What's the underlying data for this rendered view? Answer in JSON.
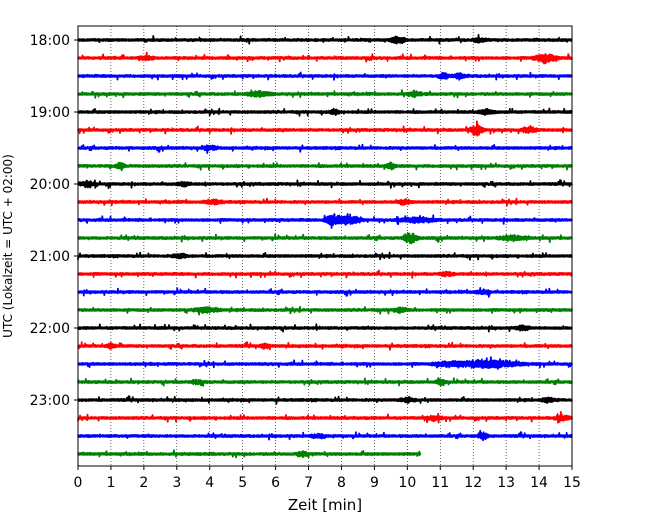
{
  "chart_data": {
    "type": "line",
    "subtype": "helicorder",
    "xlabel": "Zeit  [min]",
    "ylabel": "UTC (Lokalzeit = UTC + 02:00)",
    "xlim": [
      0,
      15
    ],
    "x_ticks": [
      "0",
      "1",
      "2",
      "3",
      "4",
      "5",
      "6",
      "7",
      "8",
      "9",
      "10",
      "11",
      "12",
      "13",
      "14",
      "15"
    ],
    "y_ticks": [
      "18:00",
      "19:00",
      "20:00",
      "21:00",
      "22:00",
      "23:00"
    ],
    "grid": "vertical dotted lines at each minute",
    "trace_colors": [
      "#000000",
      "#ff0000",
      "#0000ff",
      "#008000"
    ],
    "traces": [
      {
        "start": "18:00",
        "color": "#000000",
        "end_min": 15,
        "events": [
          {
            "t": 9.7,
            "amp": 0.45,
            "dur": 0.3
          },
          {
            "t": 12.2,
            "amp": 0.3,
            "dur": 0.3
          }
        ]
      },
      {
        "start": "18:15",
        "color": "#ff0000",
        "end_min": 15,
        "events": [
          {
            "t": 2.1,
            "amp": 0.3,
            "dur": 0.3
          },
          {
            "t": 14.2,
            "amp": 0.55,
            "dur": 0.5
          }
        ]
      },
      {
        "start": "18:30",
        "color": "#0000ff",
        "end_min": 15,
        "events": [
          {
            "t": 11.1,
            "amp": 0.5,
            "dur": 0.2
          },
          {
            "t": 11.6,
            "amp": 0.35,
            "dur": 0.3
          }
        ]
      },
      {
        "start": "18:45",
        "color": "#008000",
        "end_min": 15,
        "events": [
          {
            "t": 5.5,
            "amp": 0.3,
            "dur": 0.5
          },
          {
            "t": 10.2,
            "amp": 0.35,
            "dur": 0.3
          }
        ]
      },
      {
        "start": "19:00",
        "color": "#000000",
        "end_min": 15,
        "events": [
          {
            "t": 7.8,
            "amp": 0.35,
            "dur": 0.2
          },
          {
            "t": 12.4,
            "amp": 0.35,
            "dur": 0.3
          }
        ]
      },
      {
        "start": "19:15",
        "color": "#ff0000",
        "end_min": 15,
        "events": [
          {
            "t": 12.1,
            "amp": 0.75,
            "dur": 0.3
          },
          {
            "t": 13.7,
            "amp": 0.45,
            "dur": 0.3
          }
        ]
      },
      {
        "start": "19:30",
        "color": "#0000ff",
        "end_min": 15,
        "events": [
          {
            "t": 4.0,
            "amp": 0.3,
            "dur": 0.3
          }
        ]
      },
      {
        "start": "19:45",
        "color": "#008000",
        "end_min": 15,
        "events": [
          {
            "t": 1.3,
            "amp": 0.45,
            "dur": 0.2
          },
          {
            "t": 9.5,
            "amp": 0.45,
            "dur": 0.2
          }
        ]
      },
      {
        "start": "20:00",
        "color": "#000000",
        "end_min": 15,
        "events": [
          {
            "t": 0.3,
            "amp": 0.4,
            "dur": 0.3
          },
          {
            "t": 3.2,
            "amp": 0.25,
            "dur": 0.3
          }
        ]
      },
      {
        "start": "20:15",
        "color": "#ff0000",
        "end_min": 15,
        "events": [
          {
            "t": 4.1,
            "amp": 0.3,
            "dur": 0.4
          },
          {
            "t": 9.9,
            "amp": 0.3,
            "dur": 0.3
          }
        ]
      },
      {
        "start": "20:30",
        "color": "#0000ff",
        "end_min": 15,
        "events": [
          {
            "t": 7.7,
            "amp": 0.8,
            "dur": 0.3
          },
          {
            "t": 8.2,
            "amp": 0.6,
            "dur": 0.5
          },
          {
            "t": 10.3,
            "amp": 0.35,
            "dur": 0.8
          }
        ]
      },
      {
        "start": "20:45",
        "color": "#008000",
        "end_min": 15,
        "events": [
          {
            "t": 10.1,
            "amp": 0.7,
            "dur": 0.3
          },
          {
            "t": 13.2,
            "amp": 0.3,
            "dur": 0.6
          }
        ]
      },
      {
        "start": "21:00",
        "color": "#000000",
        "end_min": 15,
        "events": [
          {
            "t": 3.1,
            "amp": 0.3,
            "dur": 0.3
          }
        ]
      },
      {
        "start": "21:15",
        "color": "#ff0000",
        "end_min": 15,
        "events": [
          {
            "t": 11.2,
            "amp": 0.3,
            "dur": 0.3
          }
        ]
      },
      {
        "start": "21:30",
        "color": "#0000ff",
        "end_min": 15,
        "events": [
          {
            "t": 12.3,
            "amp": 0.3,
            "dur": 0.3
          }
        ]
      },
      {
        "start": "21:45",
        "color": "#008000",
        "end_min": 15,
        "events": [
          {
            "t": 3.9,
            "amp": 0.35,
            "dur": 0.5
          },
          {
            "t": 9.8,
            "amp": 0.3,
            "dur": 0.3
          }
        ]
      },
      {
        "start": "22:00",
        "color": "#000000",
        "end_min": 15,
        "events": [
          {
            "t": 13.5,
            "amp": 0.3,
            "dur": 0.3
          }
        ]
      },
      {
        "start": "22:15",
        "color": "#ff0000",
        "end_min": 15,
        "events": [
          {
            "t": 1.0,
            "amp": 0.3,
            "dur": 0.2
          },
          {
            "t": 5.7,
            "amp": 0.3,
            "dur": 0.2
          }
        ]
      },
      {
        "start": "22:30",
        "color": "#0000ff",
        "end_min": 15,
        "events": [
          {
            "t": 12.5,
            "amp": 0.6,
            "dur": 1.2
          },
          {
            "t": 11.2,
            "amp": 0.3,
            "dur": 0.6
          }
        ]
      },
      {
        "start": "22:45",
        "color": "#008000",
        "end_min": 15,
        "events": [
          {
            "t": 11.0,
            "amp": 0.4,
            "dur": 0.2
          },
          {
            "t": 3.6,
            "amp": 0.3,
            "dur": 0.2
          }
        ]
      },
      {
        "start": "23:00",
        "color": "#000000",
        "end_min": 15,
        "events": [
          {
            "t": 10.0,
            "amp": 0.35,
            "dur": 0.3
          },
          {
            "t": 14.3,
            "amp": 0.3,
            "dur": 0.3
          }
        ]
      },
      {
        "start": "23:15",
        "color": "#ff0000",
        "end_min": 15,
        "events": [
          {
            "t": 10.8,
            "amp": 0.3,
            "dur": 0.3
          },
          {
            "t": 14.7,
            "amp": 0.4,
            "dur": 0.3
          }
        ]
      },
      {
        "start": "23:30",
        "color": "#0000ff",
        "end_min": 15,
        "events": [
          {
            "t": 12.3,
            "amp": 0.45,
            "dur": 0.2
          },
          {
            "t": 7.3,
            "amp": 0.3,
            "dur": 0.3
          }
        ]
      },
      {
        "start": "23:45",
        "color": "#008000",
        "end_min": 10.4,
        "events": [
          {
            "t": 6.8,
            "amp": 0.5,
            "dur": 0.2
          }
        ]
      }
    ]
  }
}
